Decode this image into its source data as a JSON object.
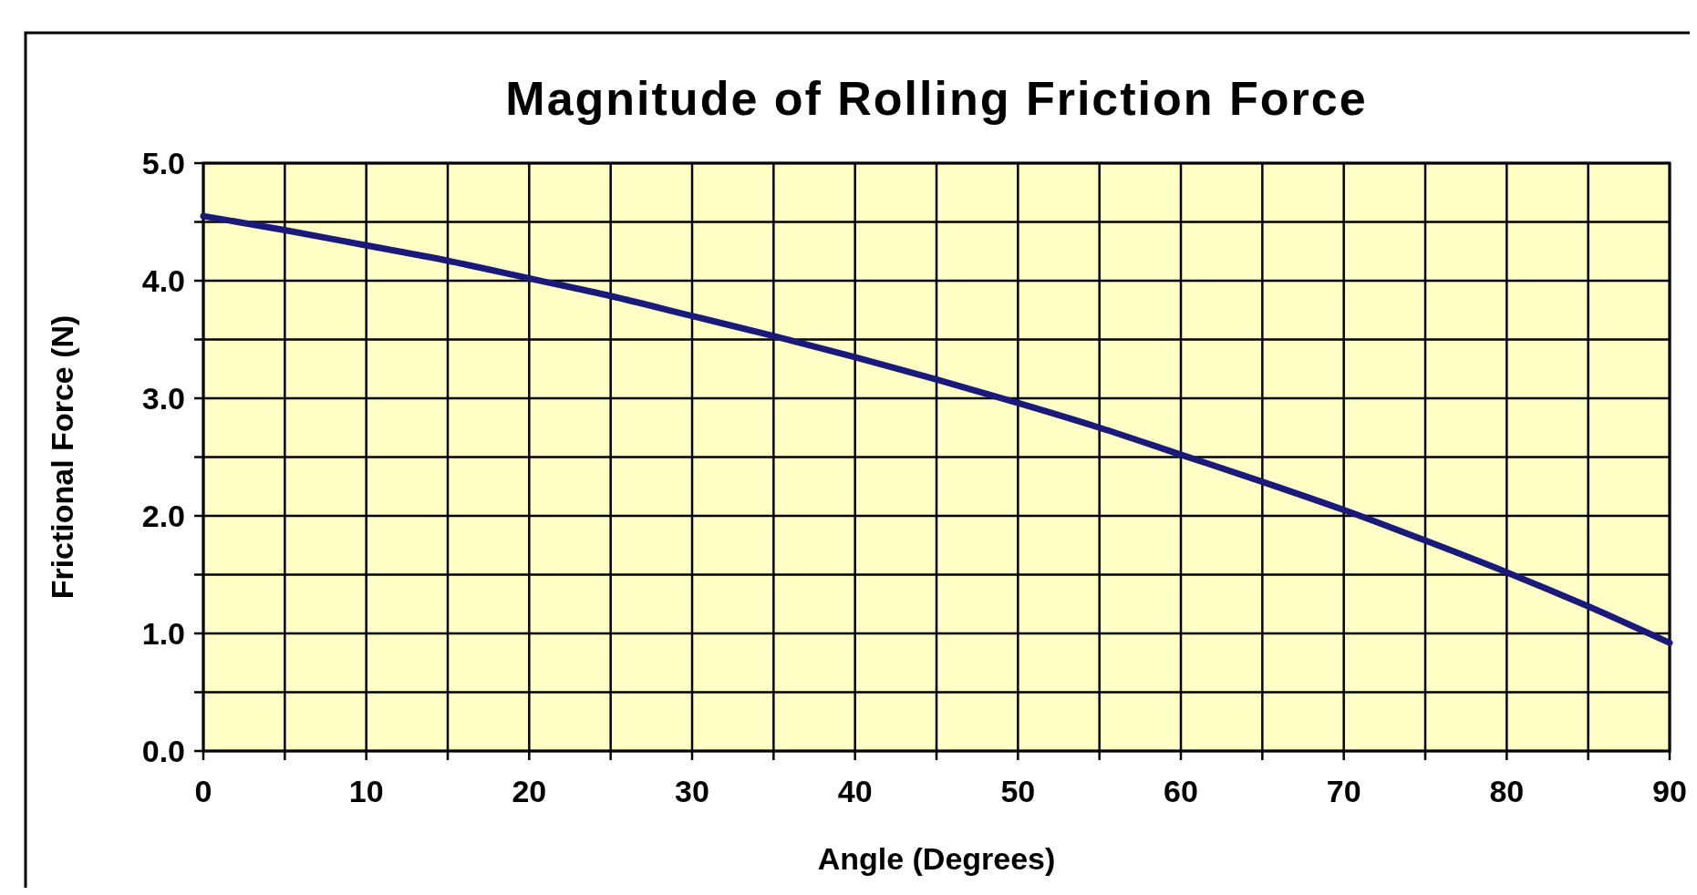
{
  "chart_data": {
    "type": "line",
    "title": "Magnitude of Rolling Friction Force",
    "xlabel": "Angle (Degrees)",
    "ylabel": "Frictional Force (N)",
    "x": [
      0,
      5,
      10,
      15,
      20,
      25,
      30,
      35,
      40,
      45,
      50,
      55,
      60,
      65,
      70,
      75,
      80,
      85,
      90
    ],
    "series": [
      {
        "color": "#1a1a7a",
        "values": [
          4.55,
          4.43,
          4.3,
          4.17,
          4.02,
          3.87,
          3.7,
          3.53,
          3.35,
          3.16,
          2.96,
          2.75,
          2.52,
          2.29,
          2.05,
          1.79,
          1.52,
          1.23,
          0.92
        ]
      }
    ],
    "xlim": [
      0,
      90
    ],
    "ylim": [
      0,
      5
    ],
    "xticks": [
      0,
      {
        "value": 5,
        "label": null
      },
      10,
      {
        "value": 15,
        "label": null
      },
      20,
      {
        "value": 25,
        "label": null
      },
      30,
      {
        "value": 35,
        "label": null
      },
      40,
      {
        "value": 45,
        "label": null
      },
      50,
      {
        "value": 55,
        "label": null
      },
      60,
      {
        "value": 65,
        "label": null
      },
      70,
      {
        "value": 75,
        "label": null
      },
      80,
      {
        "value": 85,
        "label": null
      },
      90
    ],
    "yticks": [
      {
        "value": 0,
        "label": "0.0"
      },
      {
        "value": 0.5,
        "label": null
      },
      {
        "value": 1,
        "label": "1.0"
      },
      {
        "value": 1.5,
        "label": null
      },
      {
        "value": 2,
        "label": "2.0"
      },
      {
        "value": 2.5,
        "label": null
      },
      {
        "value": 3,
        "label": "3.0"
      },
      {
        "value": 3.5,
        "label": null
      },
      {
        "value": 4,
        "label": "4.0"
      },
      {
        "value": 4.5,
        "label": null
      },
      {
        "value": 5,
        "label": "5.0"
      }
    ],
    "grid": true,
    "marker": "none",
    "line_style": "solid"
  }
}
